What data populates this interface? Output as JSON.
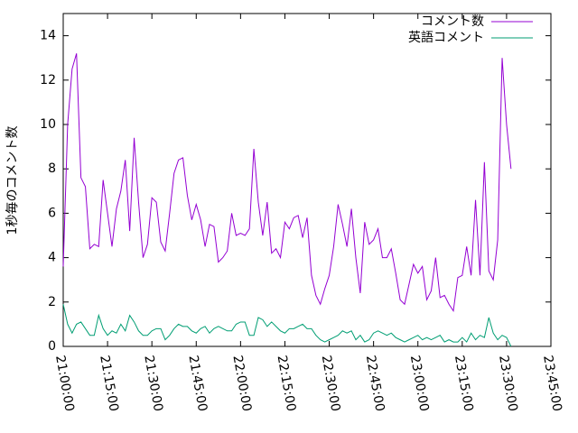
{
  "chart_data": {
    "type": "line",
    "ylabel": "1秒毎のコメント数",
    "x": [
      "21:00:00",
      "21:01:30",
      "21:03:00",
      "21:04:30",
      "21:06:00",
      "21:07:30",
      "21:09:00",
      "21:10:30",
      "21:12:00",
      "21:13:30",
      "21:15:00",
      "21:16:30",
      "21:18:00",
      "21:19:30",
      "21:21:00",
      "21:22:30",
      "21:24:00",
      "21:25:30",
      "21:27:00",
      "21:28:30",
      "21:30:00",
      "21:31:30",
      "21:33:00",
      "21:34:30",
      "21:36:00",
      "21:37:30",
      "21:39:00",
      "21:40:30",
      "21:42:00",
      "21:43:30",
      "21:45:00",
      "21:46:30",
      "21:48:00",
      "21:49:30",
      "21:51:00",
      "21:52:30",
      "21:54:00",
      "21:55:30",
      "21:57:00",
      "21:58:30",
      "22:00:00",
      "22:01:30",
      "22:03:00",
      "22:04:30",
      "22:06:00",
      "22:07:30",
      "22:09:00",
      "22:10:30",
      "22:12:00",
      "22:13:30",
      "22:15:00",
      "22:16:30",
      "22:18:00",
      "22:19:30",
      "22:21:00",
      "22:22:30",
      "22:24:00",
      "22:25:30",
      "22:27:00",
      "22:28:30",
      "22:30:00",
      "22:31:30",
      "22:33:00",
      "22:34:30",
      "22:36:00",
      "22:37:30",
      "22:39:00",
      "22:40:30",
      "22:42:00",
      "22:43:30",
      "22:45:00",
      "22:46:30",
      "22:48:00",
      "22:49:30",
      "22:51:00",
      "22:52:30",
      "22:54:00",
      "22:55:30",
      "22:57:00",
      "22:58:30",
      "23:00:00",
      "23:01:30",
      "23:03:00",
      "23:04:30",
      "23:06:00",
      "23:07:30",
      "23:09:00",
      "23:10:30",
      "23:12:00",
      "23:13:30",
      "23:15:00",
      "23:16:30",
      "23:18:00",
      "23:19:30",
      "23:21:00",
      "23:22:30",
      "23:24:00",
      "23:25:30",
      "23:27:00",
      "23:28:30",
      "23:30:00",
      "23:31:30"
    ],
    "series": [
      {
        "name": "コメント数",
        "color": "#9400d3",
        "values": [
          3.6,
          10,
          12.5,
          13.2,
          7.6,
          7.2,
          4.4,
          4.6,
          4.5,
          7.5,
          6,
          4.5,
          6.2,
          7,
          8.4,
          5.2,
          9.4,
          6.5,
          4,
          4.6,
          6.7,
          6.5,
          4.7,
          4.3,
          6,
          7.8,
          8.4,
          8.5,
          6.8,
          5.7,
          6.4,
          5.7,
          4.5,
          5.5,
          5.4,
          3.8,
          4,
          4.3,
          6,
          5,
          5.1,
          5,
          5.3,
          8.9,
          6.5,
          5,
          6.5,
          4.2,
          4.4,
          4,
          5.6,
          5.3,
          5.8,
          5.9,
          4.9,
          5.8,
          3.2,
          2.3,
          1.9,
          2.6,
          3.2,
          4.5,
          6.4,
          5.5,
          4.5,
          6.2,
          4,
          2.4,
          5.6,
          4.6,
          4.8,
          5.3,
          4,
          4,
          4.4,
          3.3,
          2.1,
          1.9,
          2.8,
          3.7,
          3.3,
          3.6,
          2.1,
          2.5,
          4,
          2.2,
          2.3,
          1.9,
          1.6,
          3.1,
          3.2,
          4.5,
          3.2,
          6.6,
          3.2,
          8.3,
          3.4,
          3,
          4.8,
          13,
          10,
          8
        ]
      },
      {
        "name": "英語コメント",
        "color": "#009e73",
        "values": [
          1.9,
          1.0,
          0.6,
          1.0,
          1.1,
          0.8,
          0.5,
          0.5,
          1.4,
          0.8,
          0.5,
          0.7,
          0.6,
          1.0,
          0.7,
          1.4,
          1.1,
          0.7,
          0.5,
          0.5,
          0.7,
          0.8,
          0.8,
          0.3,
          0.5,
          0.8,
          1.0,
          0.9,
          0.9,
          0.7,
          0.6,
          0.8,
          0.9,
          0.6,
          0.8,
          0.9,
          0.8,
          0.7,
          0.7,
          1.0,
          1.1,
          1.1,
          0.5,
          0.5,
          1.3,
          1.2,
          0.9,
          1.1,
          0.9,
          0.7,
          0.6,
          0.8,
          0.8,
          0.9,
          1.0,
          0.8,
          0.8,
          0.5,
          0.3,
          0.2,
          0.3,
          0.4,
          0.5,
          0.7,
          0.6,
          0.7,
          0.3,
          0.5,
          0.2,
          0.3,
          0.6,
          0.7,
          0.6,
          0.5,
          0.6,
          0.4,
          0.3,
          0.2,
          0.3,
          0.4,
          0.5,
          0.3,
          0.4,
          0.3,
          0.4,
          0.5,
          0.2,
          0.3,
          0.2,
          0.2,
          0.4,
          0.2,
          0.6,
          0.3,
          0.5,
          0.4,
          1.3,
          0.6,
          0.3,
          0.5,
          0.4,
          0.0
        ]
      }
    ],
    "xlim": [
      "21:00:00",
      "23:45:00"
    ],
    "xticks": [
      "21:00:00",
      "21:15:00",
      "21:30:00",
      "21:45:00",
      "22:00:00",
      "22:15:00",
      "22:30:00",
      "22:45:00",
      "23:00:00",
      "23:15:00",
      "23:30:00",
      "23:45:00"
    ],
    "ylim": [
      0,
      15
    ],
    "yticks": [
      0,
      2,
      4,
      6,
      8,
      10,
      12,
      14
    ],
    "legend": "top-right"
  }
}
